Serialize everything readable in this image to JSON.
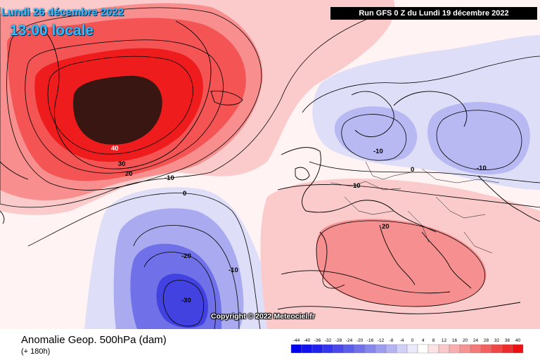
{
  "header": {
    "valid_date": "Lundi 26 décembre 2022",
    "local_time": "13:00 locale",
    "run_info": "Run GFS 0 Z du Lundi 19 décembre 2022"
  },
  "map": {
    "copyright": "Copyright © 2022 Meteociel.fr",
    "contour_labels": [
      {
        "id": "greenland-40",
        "text": "40"
      },
      {
        "id": "greenland-30",
        "text": "30"
      },
      {
        "id": "greenland-20",
        "text": "20"
      },
      {
        "id": "atlantic-m10-a",
        "text": "-10"
      },
      {
        "id": "atlantic-0",
        "text": "0"
      },
      {
        "id": "low-m20",
        "text": "-20"
      },
      {
        "id": "low-m10",
        "text": "-10"
      },
      {
        "id": "low-m30",
        "text": "-30"
      },
      {
        "id": "scandinavia-m10",
        "text": "-10"
      },
      {
        "id": "north-sea-0",
        "text": "0"
      },
      {
        "id": "russia-m10",
        "text": "-10"
      },
      {
        "id": "channel-10",
        "text": "10"
      },
      {
        "id": "med-20",
        "text": "20"
      }
    ],
    "colors": {
      "extreme_high": "#3a1612",
      "strong_high": "#ee1a1a",
      "high": "#f45050",
      "moderate_high": "#f88a8a",
      "weak_high": "#fbc6c6",
      "neutral": "#ffffff",
      "weak_low": "#dcdcf8",
      "moderate_low": "#a8a8f0",
      "low": "#6e6ee8",
      "strong_low": "#3e3ee0"
    }
  },
  "footer": {
    "title": "Anomalie Geop. 500hPa (dam)",
    "lead_time": "(+ 180h)"
  },
  "legend": {
    "ticks": [
      "-44",
      "-40",
      "-36",
      "-32",
      "-28",
      "-24",
      "-20",
      "-16",
      "-12",
      "-8",
      "-4",
      "0",
      "4",
      "8",
      "12",
      "16",
      "20",
      "24",
      "28",
      "32",
      "36",
      "40"
    ],
    "colors": [
      "#0000f0",
      "#1010f0",
      "#2020f0",
      "#3434ee",
      "#4848ec",
      "#5c5cea",
      "#7070ea",
      "#8686ec",
      "#9c9cf0",
      "#b4b4f4",
      "#d0d0f8",
      "#eaeafc",
      "#ffffff",
      "#fce2e2",
      "#fac8c8",
      "#f8aeae",
      "#f69494",
      "#f47a7a",
      "#f26060",
      "#f04646",
      "#ee2c2c",
      "#ec1010"
    ]
  }
}
